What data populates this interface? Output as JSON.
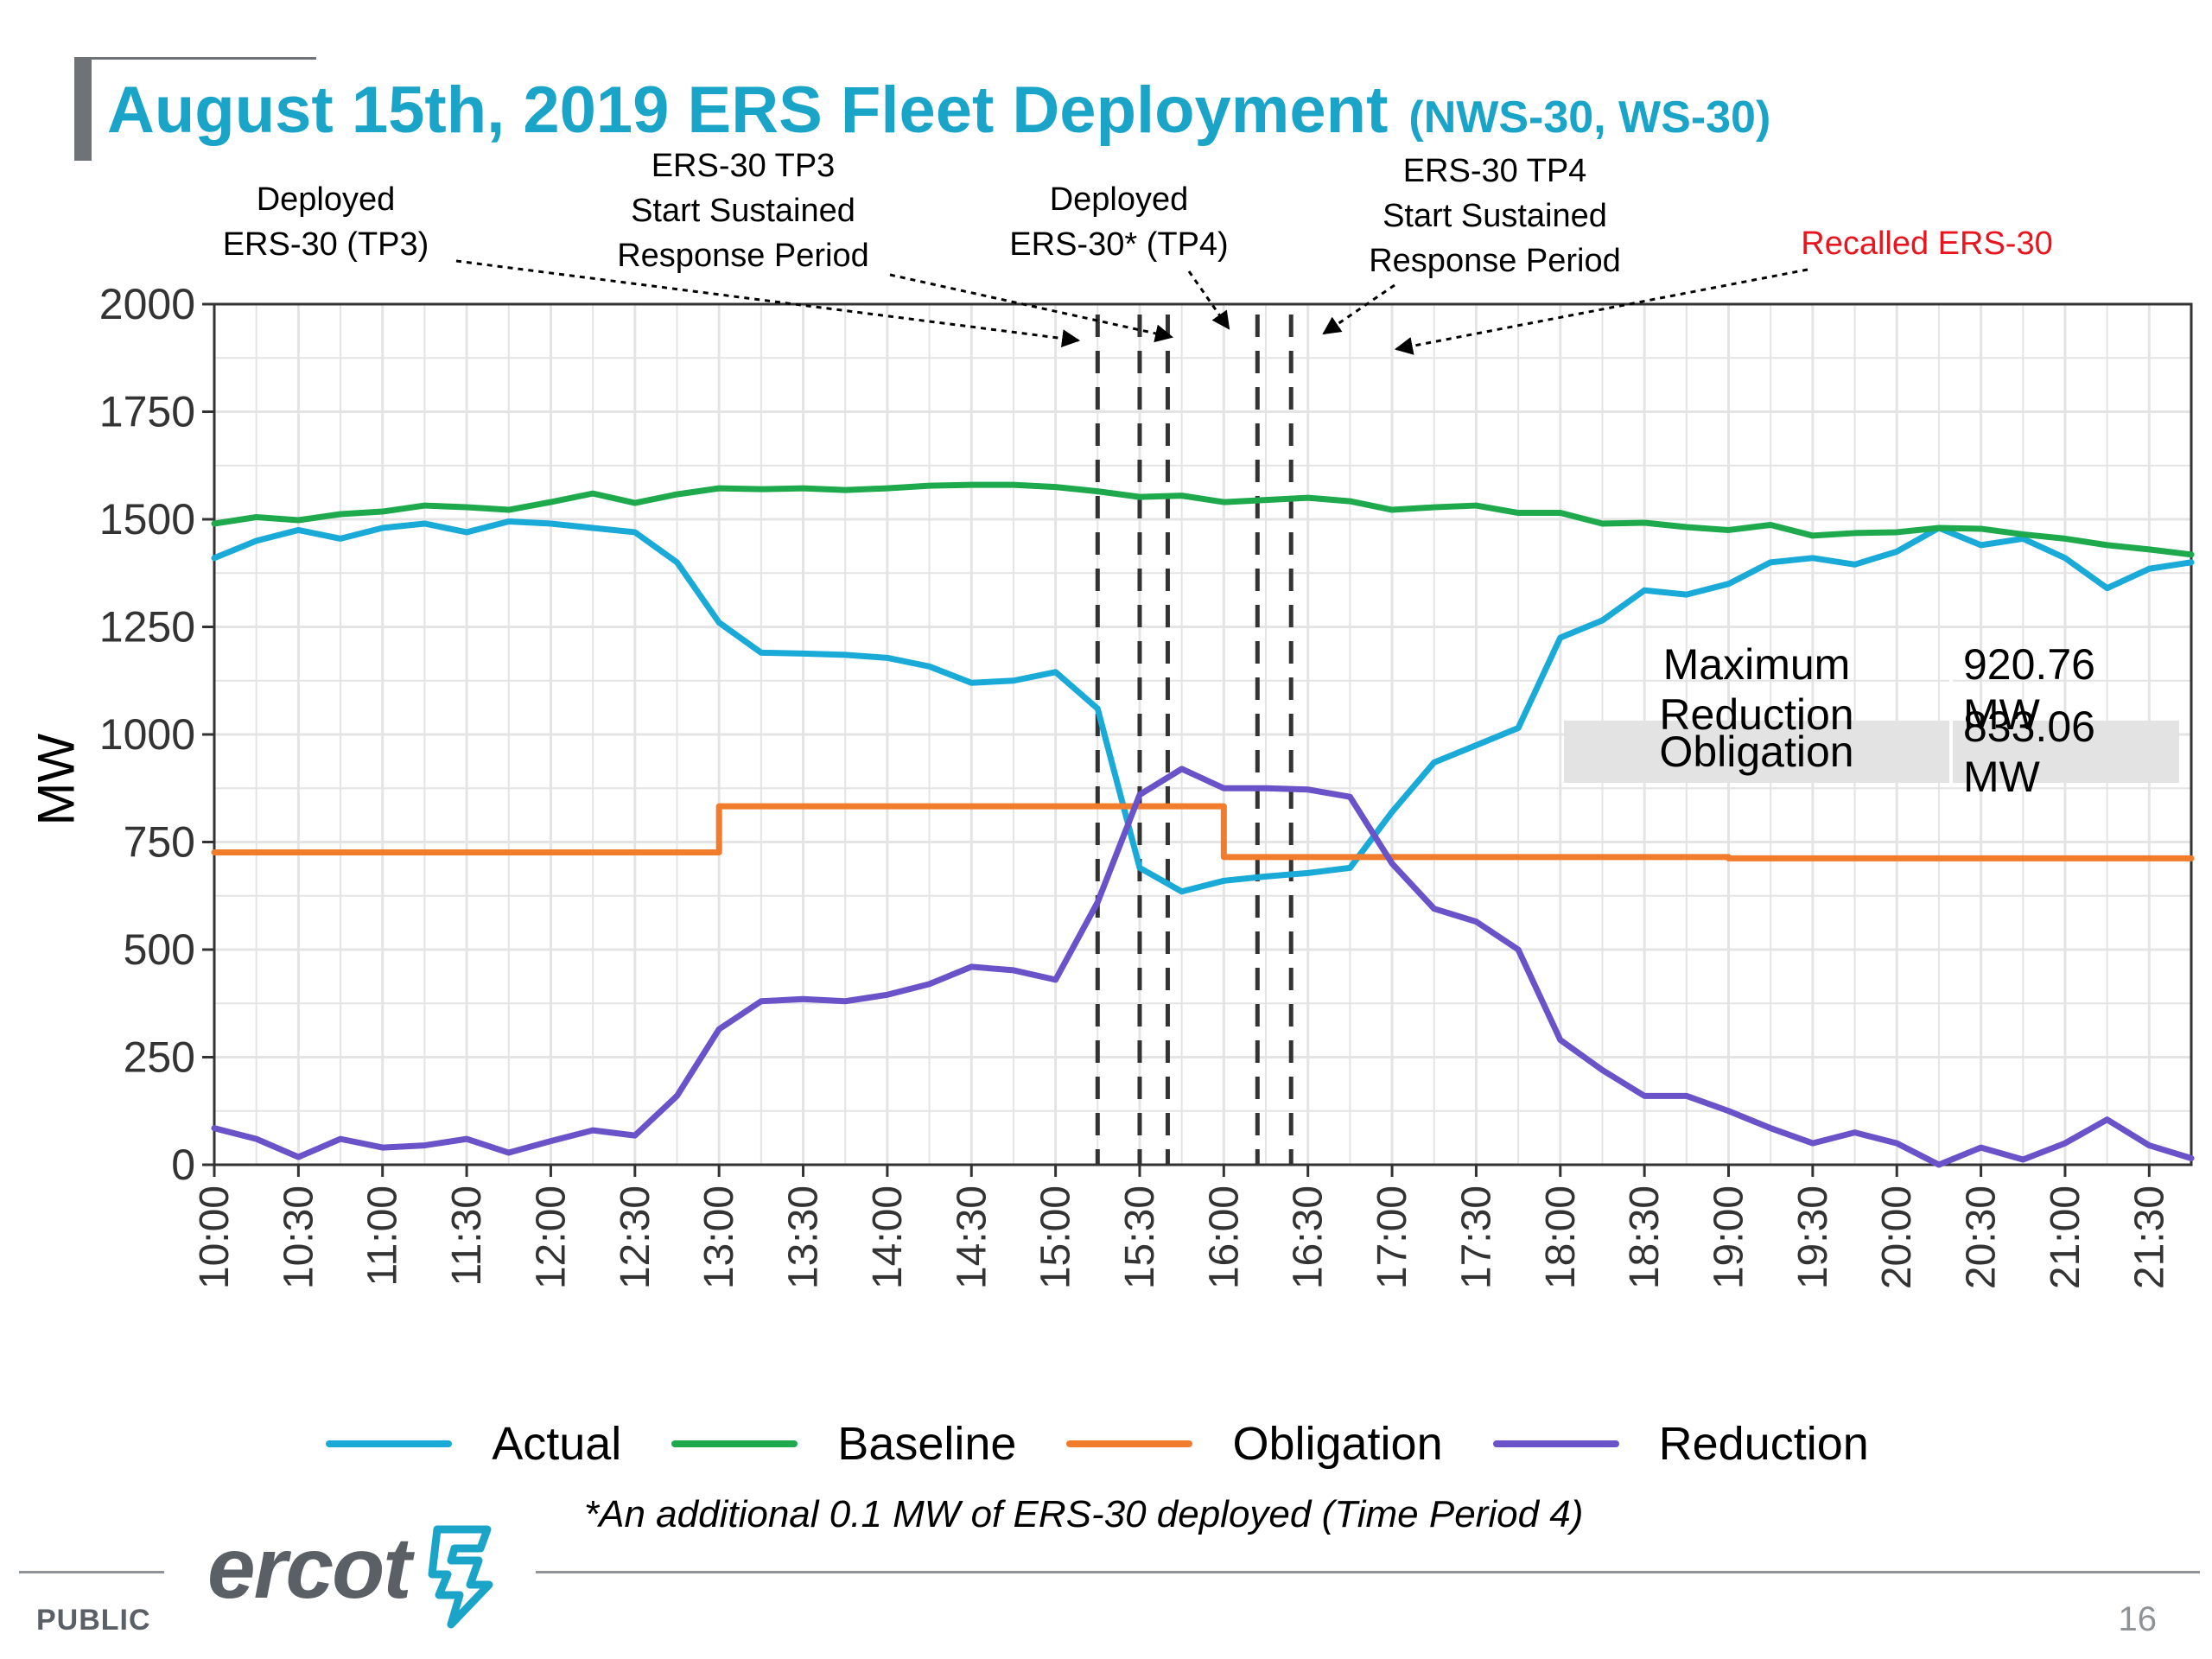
{
  "title": {
    "main": "August 15th, 2019 ERS Fleet Deployment",
    "sub": "(NWS-30, WS-30)"
  },
  "annotations": [
    {
      "id": "deployed-tp3",
      "lines": [
        "Deployed",
        "ERS-30 (TP3)"
      ],
      "color": "black"
    },
    {
      "id": "tp3-start",
      "lines": [
        "ERS-30  TP3",
        "Start Sustained",
        "Response Period"
      ],
      "color": "black"
    },
    {
      "id": "deployed-tp4",
      "lines": [
        "Deployed",
        "ERS-30* (TP4)"
      ],
      "color": "black"
    },
    {
      "id": "tp4-start",
      "lines": [
        "ERS-30 TP4",
        "Start Sustained",
        "Response Period"
      ],
      "color": "black"
    },
    {
      "id": "recalled",
      "lines": [
        "Recalled ERS-30"
      ],
      "color": "red"
    }
  ],
  "stats_table": [
    {
      "label": "Maximum Reduction",
      "value": "920.76 MW"
    },
    {
      "label": "Obligation",
      "value": "833.06 MW"
    }
  ],
  "footnote": "*An additional 0.1 MW of ERS-30 deployed (Time Period 4)",
  "footer": {
    "logo_text": "ercot",
    "classification": "PUBLIC",
    "page_number": "16"
  },
  "chart_data": {
    "type": "line",
    "title": "August 15th, 2019 ERS Fleet Deployment (NWS-30, WS-30)",
    "xlabel": "",
    "ylabel": "MW",
    "ylim": [
      0,
      2000
    ],
    "yticks": [
      0,
      250,
      500,
      750,
      1000,
      1250,
      1500,
      1750,
      2000
    ],
    "x": [
      "10:00",
      "10:15",
      "10:30",
      "10:45",
      "11:00",
      "11:15",
      "11:30",
      "11:45",
      "12:00",
      "12:15",
      "12:30",
      "12:45",
      "13:00",
      "13:15",
      "13:30",
      "13:45",
      "14:00",
      "14:15",
      "14:30",
      "14:45",
      "15:00",
      "15:15",
      "15:30",
      "15:45",
      "16:00",
      "16:15",
      "16:30",
      "16:45",
      "17:00",
      "17:15",
      "17:30",
      "17:45",
      "18:00",
      "18:15",
      "18:30",
      "18:45",
      "19:00",
      "19:15",
      "19:30",
      "19:45",
      "20:00",
      "20:15",
      "20:30",
      "20:45",
      "21:00",
      "21:15",
      "21:30",
      "21:45"
    ],
    "x_tick_labels": [
      "10:00",
      "10:30",
      "11:00",
      "11:30",
      "12:00",
      "12:30",
      "13:00",
      "13:30",
      "14:00",
      "14:30",
      "15:00",
      "15:30",
      "16:00",
      "16:30",
      "17:00",
      "17:30",
      "18:00",
      "18:30",
      "19:00",
      "19:30",
      "20:00",
      "20:30",
      "21:00",
      "21:30"
    ],
    "grid": true,
    "legend_position": "bottom",
    "series": [
      {
        "name": "Actual",
        "color": "#1aaad8",
        "values": [
          1410,
          1450,
          1475,
          1455,
          1480,
          1490,
          1470,
          1495,
          1490,
          1480,
          1470,
          1400,
          1260,
          1190,
          1188,
          1185,
          1178,
          1158,
          1120,
          1125,
          1145,
          1060,
          690,
          635,
          660,
          670,
          678,
          690,
          820,
          935,
          975,
          1015,
          1225,
          1265,
          1335,
          1325,
          1350,
          1400,
          1410,
          1395,
          1425,
          1480,
          1440,
          1455,
          1410,
          1340,
          1385,
          1400
        ]
      },
      {
        "name": "Baseline",
        "color": "#1eaa4c",
        "values": [
          1490,
          1505,
          1498,
          1512,
          1518,
          1532,
          1528,
          1522,
          1540,
          1560,
          1538,
          1558,
          1572,
          1570,
          1572,
          1568,
          1572,
          1578,
          1580,
          1580,
          1575,
          1565,
          1552,
          1555,
          1540,
          1545,
          1550,
          1542,
          1522,
          1528,
          1532,
          1515,
          1515,
          1490,
          1492,
          1482,
          1475,
          1487,
          1462,
          1468,
          1470,
          1480,
          1478,
          1465,
          1455,
          1440,
          1430,
          1418
        ]
      },
      {
        "name": "Obligation",
        "color": "#f07c2c",
        "values": [
          726,
          726,
          726,
          726,
          726,
          726,
          726,
          726,
          726,
          726,
          726,
          726,
          833,
          833,
          833,
          833,
          833,
          833,
          833,
          833,
          833,
          833,
          833,
          833,
          715,
          715,
          715,
          715,
          715,
          715,
          715,
          715,
          715,
          715,
          715,
          715,
          712,
          712,
          712,
          712,
          712,
          712,
          712,
          712,
          712,
          712,
          712,
          712
        ]
      },
      {
        "name": "Reduction",
        "color": "#6a52c8",
        "values": [
          85,
          60,
          18,
          60,
          40,
          45,
          60,
          28,
          55,
          80,
          68,
          160,
          315,
          380,
          385,
          380,
          395,
          420,
          460,
          452,
          430,
          610,
          860,
          920,
          875,
          875,
          872,
          855,
          700,
          595,
          565,
          500,
          290,
          220,
          160,
          160,
          125,
          85,
          50,
          75,
          50,
          0,
          40,
          12,
          50,
          105,
          45,
          15
        ]
      }
    ],
    "event_lines": [
      "15:15",
      "15:30",
      "15:40",
      "16:12",
      "16:24"
    ]
  }
}
